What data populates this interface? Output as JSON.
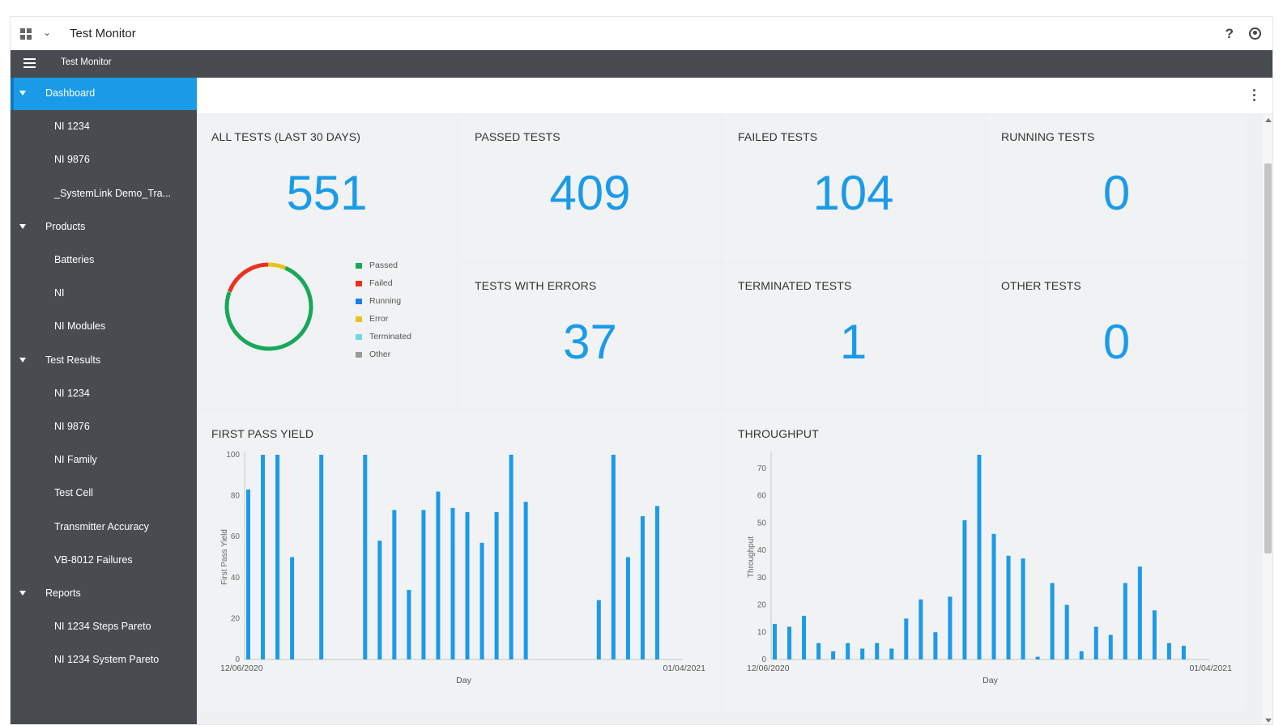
{
  "topbar": {
    "title": "Test Monitor"
  },
  "header": {
    "title": "Test Monitor"
  },
  "sidebar": {
    "items": [
      {
        "label": "Dashboard",
        "type": "section",
        "active": true
      },
      {
        "label": "NI 1234",
        "type": "child"
      },
      {
        "label": "NI 9876",
        "type": "child"
      },
      {
        "label": "_SystemLink Demo_Tra...",
        "type": "child"
      },
      {
        "label": "Products",
        "type": "section"
      },
      {
        "label": "Batteries",
        "type": "child"
      },
      {
        "label": "NI",
        "type": "child"
      },
      {
        "label": "NI Modules",
        "type": "child"
      },
      {
        "label": "Test Results",
        "type": "section"
      },
      {
        "label": "NI 1234",
        "type": "child"
      },
      {
        "label": "NI 9876",
        "type": "child"
      },
      {
        "label": "NI Family",
        "type": "child"
      },
      {
        "label": "Test Cell",
        "type": "child"
      },
      {
        "label": "Transmitter Accuracy",
        "type": "child"
      },
      {
        "label": "VB-8012 Failures",
        "type": "child"
      },
      {
        "label": "Reports",
        "type": "section"
      },
      {
        "label": "NI 1234 Steps Pareto",
        "type": "child"
      },
      {
        "label": "NI 1234 System Pareto",
        "type": "child"
      }
    ]
  },
  "tiles": {
    "all": {
      "title": "ALL TESTS (LAST 30 DAYS)",
      "value": "551"
    },
    "passed": {
      "title": "PASSED TESTS",
      "value": "409"
    },
    "failed": {
      "title": "FAILED TESTS",
      "value": "104"
    },
    "running": {
      "title": "RUNNING TESTS",
      "value": "0"
    },
    "errors": {
      "title": "TESTS WITH ERRORS",
      "value": "37"
    },
    "terminated": {
      "title": "TERMINATED TESTS",
      "value": "1"
    },
    "other": {
      "title": "OTHER TESTS",
      "value": "0"
    }
  },
  "legend": [
    {
      "label": "Passed",
      "color": "#17a85a"
    },
    {
      "label": "Failed",
      "color": "#e8321e"
    },
    {
      "label": "Running",
      "color": "#1a7fe0"
    },
    {
      "label": "Error",
      "color": "#e8c21e"
    },
    {
      "label": "Terminated",
      "color": "#6fd8e8"
    },
    {
      "label": "Other",
      "color": "#9a9a9a"
    }
  ],
  "chart_data": [
    {
      "type": "pie",
      "categories": [
        "Passed",
        "Failed",
        "Running",
        "Error",
        "Terminated",
        "Other"
      ],
      "values": [
        409,
        104,
        0,
        37,
        1,
        0
      ],
      "colors": [
        "#17a85a",
        "#e8321e",
        "#1a7fe0",
        "#e8c21e",
        "#6fd8e8",
        "#9a9a9a"
      ],
      "title": "",
      "style": "donut"
    },
    {
      "type": "bar",
      "title": "FIRST PASS YIELD",
      "xlabel": "Day",
      "ylabel": "First Pass Yield",
      "ylim": [
        0,
        100
      ],
      "yticks": [
        0,
        20,
        40,
        60,
        80,
        100
      ],
      "x_start_label": "12/06/2020",
      "x_end_label": "01/04/2021",
      "days": 30,
      "values": [
        83,
        100,
        100,
        50,
        null,
        100,
        null,
        null,
        100,
        58,
        73,
        34,
        73,
        82,
        74,
        72,
        57,
        72,
        100,
        77,
        null,
        null,
        null,
        null,
        29,
        100,
        50,
        70,
        75,
        null
      ],
      "color": "#1a9be8"
    },
    {
      "type": "bar",
      "title": "THROUGHPUT",
      "xlabel": "Day",
      "ylabel": "Throughput",
      "ylim": [
        0,
        75
      ],
      "yticks": [
        0,
        10,
        20,
        30,
        40,
        50,
        60,
        70
      ],
      "x_start_label": "12/06/2020",
      "x_end_label": "01/04/2021",
      "days": 30,
      "values": [
        13,
        12,
        16,
        6,
        3,
        6,
        4,
        6,
        4,
        15,
        22,
        10,
        23,
        51,
        75,
        46,
        38,
        37,
        1,
        28,
        20,
        3,
        12,
        9,
        28,
        34,
        18,
        6,
        5,
        null
      ],
      "color": "#1a9be8"
    }
  ]
}
